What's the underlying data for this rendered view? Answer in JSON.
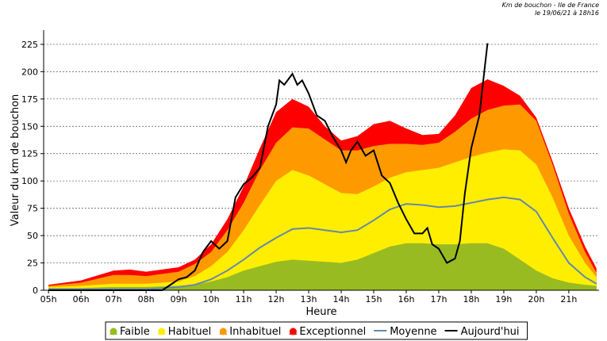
{
  "chart_data": {
    "type": "area-line",
    "title": "Km de bouchon - Ile de France",
    "subtitle": "le 19/06/21 à 18h16",
    "x_label": "Heure",
    "y_label": "Valeur du  km de bouchon",
    "xlim": [
      4.85,
      21.93
    ],
    "ylim": [
      0,
      238
    ],
    "xticks": [
      {
        "value": 5,
        "label": "05h"
      },
      {
        "value": 6,
        "label": "06h"
      },
      {
        "value": 7,
        "label": "07h"
      },
      {
        "value": 8,
        "label": "08h"
      },
      {
        "value": 9,
        "label": "09h"
      },
      {
        "value": 10,
        "label": "10h"
      },
      {
        "value": 11,
        "label": "11h"
      },
      {
        "value": 12,
        "label": "12h"
      },
      {
        "value": 13,
        "label": "13h"
      },
      {
        "value": 14,
        "label": "14h"
      },
      {
        "value": 15,
        "label": "15h"
      },
      {
        "value": 16,
        "label": "16h"
      },
      {
        "value": 17,
        "label": "17h"
      },
      {
        "value": 18,
        "label": "18h"
      },
      {
        "value": 19,
        "label": "19h"
      },
      {
        "value": 20,
        "label": "20h"
      },
      {
        "value": 21,
        "label": "21h"
      }
    ],
    "yticks": [
      0,
      25,
      50,
      75,
      100,
      125,
      150,
      175,
      200,
      225
    ],
    "grid": true,
    "x": [
      5,
      6,
      7,
      7.5,
      8,
      9,
      9.5,
      10,
      10.5,
      11,
      11.5,
      12,
      12.5,
      13,
      13.5,
      14,
      14.5,
      15,
      15.5,
      16,
      16.5,
      17,
      17.5,
      18,
      18.5,
      19,
      19.5,
      20,
      20.5,
      21,
      21.5,
      21.85
    ],
    "series": [
      {
        "name": "Exceptionnel",
        "kind": "area",
        "color": "#ff0000",
        "values": [
          5,
          9,
          18,
          19,
          17,
          21,
          28,
          42,
          65,
          95,
          130,
          163,
          175,
          168,
          150,
          137,
          141,
          152,
          155,
          148,
          142,
          143,
          160,
          185,
          193,
          187,
          178,
          158,
          118,
          75,
          40,
          20
        ]
      },
      {
        "name": "Inhabituel",
        "kind": "area",
        "color": "#ff9900",
        "values": [
          4,
          7,
          14,
          14,
          13,
          17,
          24,
          35,
          55,
          80,
          110,
          135,
          149,
          148,
          138,
          128,
          128,
          132,
          134,
          134,
          133,
          135,
          145,
          157,
          165,
          169,
          170,
          155,
          115,
          70,
          35,
          16
        ]
      },
      {
        "name": "Habituel",
        "kind": "area",
        "color": "#ffee00",
        "values": [
          3,
          4,
          6,
          6,
          6,
          8,
          13,
          22,
          35,
          55,
          78,
          100,
          110,
          105,
          97,
          89,
          88,
          95,
          103,
          108,
          110,
          112,
          117,
          122,
          126,
          129,
          128,
          115,
          85,
          50,
          25,
          12
        ]
      },
      {
        "name": "Faible",
        "kind": "area",
        "color": "#99bb22",
        "values": [
          2,
          2,
          3,
          3,
          3,
          4,
          5,
          8,
          12,
          18,
          22,
          26,
          28,
          27,
          26,
          25,
          28,
          34,
          40,
          43,
          43,
          42,
          42,
          43,
          43,
          38,
          28,
          18,
          11,
          7,
          5,
          4
        ]
      },
      {
        "name": "Moyenne",
        "kind": "line",
        "color": "#6688aa",
        "values": [
          1,
          1,
          1,
          1,
          1,
          3,
          5,
          10,
          18,
          28,
          39,
          48,
          56,
          57,
          55,
          53,
          55,
          64,
          74,
          79,
          78,
          76,
          77,
          80,
          83,
          85,
          83,
          72,
          48,
          25,
          12,
          6
        ]
      },
      {
        "name": "Aujourd'hui",
        "kind": "line",
        "color": "#000000",
        "x": [
          5,
          8.5,
          8.75,
          9,
          9.25,
          9.5,
          9.75,
          10,
          10.25,
          10.5,
          10.75,
          11,
          11.25,
          11.5,
          11.75,
          12,
          12.1,
          12.25,
          12.5,
          12.65,
          12.8,
          13,
          13.25,
          13.5,
          13.75,
          14,
          14.15,
          14.3,
          14.5,
          14.75,
          15,
          15.25,
          15.5,
          15.75,
          16,
          16.25,
          16.5,
          16.65,
          16.8,
          17,
          17.25,
          17.5,
          17.65,
          17.8,
          18,
          18.25,
          18.4,
          18.5
        ],
        "values": [
          0,
          0,
          5,
          10,
          12,
          18,
          35,
          45,
          38,
          45,
          85,
          97,
          103,
          112,
          150,
          170,
          192,
          188,
          198,
          188,
          192,
          180,
          160,
          155,
          140,
          128,
          117,
          128,
          136,
          123,
          128,
          105,
          98,
          80,
          65,
          52,
          52,
          57,
          42,
          38,
          25,
          29,
          45,
          88,
          130,
          160,
          200,
          226
        ]
      }
    ],
    "legend_order": [
      3,
      2,
      1,
      0,
      4,
      5
    ]
  }
}
